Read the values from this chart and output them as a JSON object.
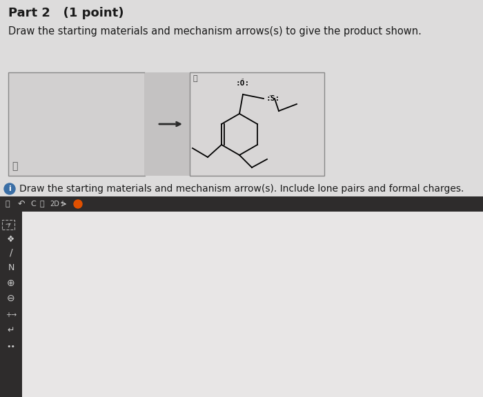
{
  "title_text": "Part 2   (1 point)",
  "subtitle_text": "Draw the starting materials and mechanism arrows(s) to give the product shown.",
  "instruction_text": "Draw the starting materials and mechanism arrow(s). Include lone pairs and formal charges.",
  "page_bg": "#c8c8c8",
  "upper_bg": "#e0dede",
  "left_box_bg": "#d8d6d6",
  "right_box_bg": "#dcdada",
  "arrow_region_bg": "#c8c6c6",
  "toolbar_bg": "#3a3838",
  "sidebar_bg": "#3a3838",
  "canvas_bg": "#f0eeee",
  "title_fontsize": 13,
  "subtitle_fontsize": 10.5,
  "info_fontsize": 10
}
